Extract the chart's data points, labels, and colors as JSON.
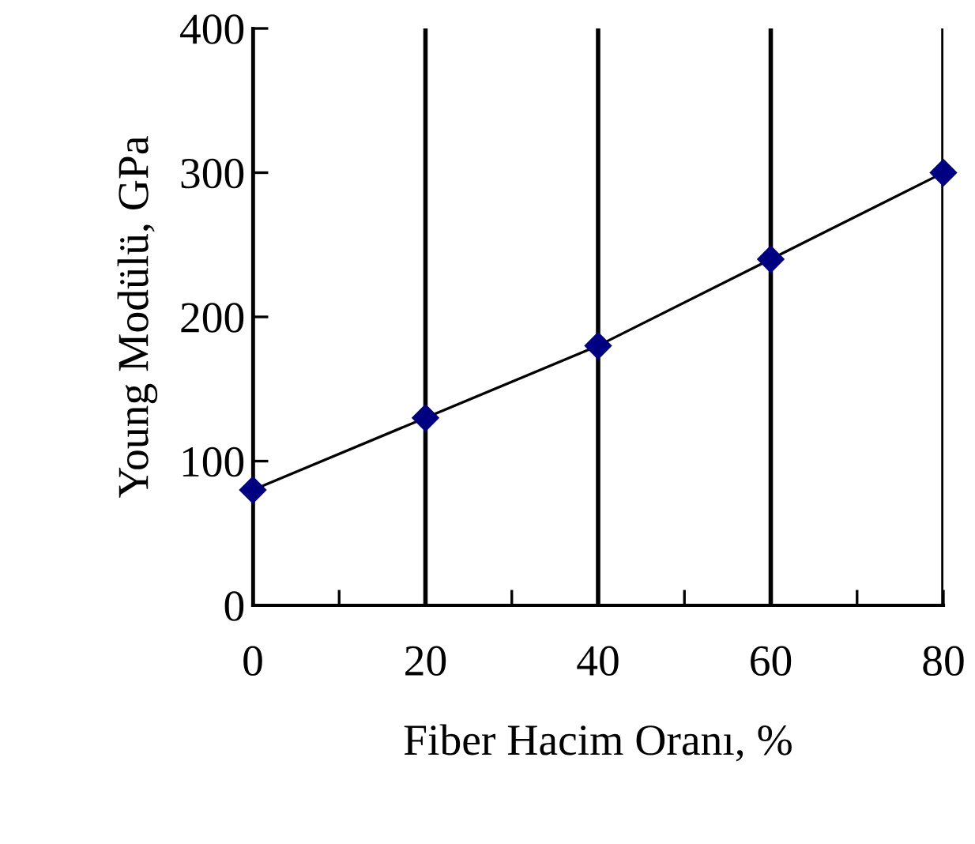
{
  "chart_data": {
    "type": "line",
    "xlabel": "Fiber Hacim Oranı, %",
    "ylabel": "Young Modülü, GPa",
    "x": [
      0,
      20,
      40,
      60,
      80
    ],
    "series": [
      {
        "color": "#000080",
        "values": [
          80,
          130,
          180,
          240,
          300
        ]
      }
    ],
    "xlim": [
      0,
      80
    ],
    "ylim": [
      0,
      400
    ],
    "xticks": [
      0,
      {
        "value": 10,
        "label": null
      },
      20,
      {
        "value": 30,
        "label": null
      },
      40,
      {
        "value": 50,
        "label": null
      },
      60,
      {
        "value": 70,
        "label": null
      },
      80
    ],
    "yticks": [
      0,
      100,
      200,
      300,
      400
    ],
    "grid": "x",
    "marker": "diamond",
    "line_style": "solid"
  }
}
